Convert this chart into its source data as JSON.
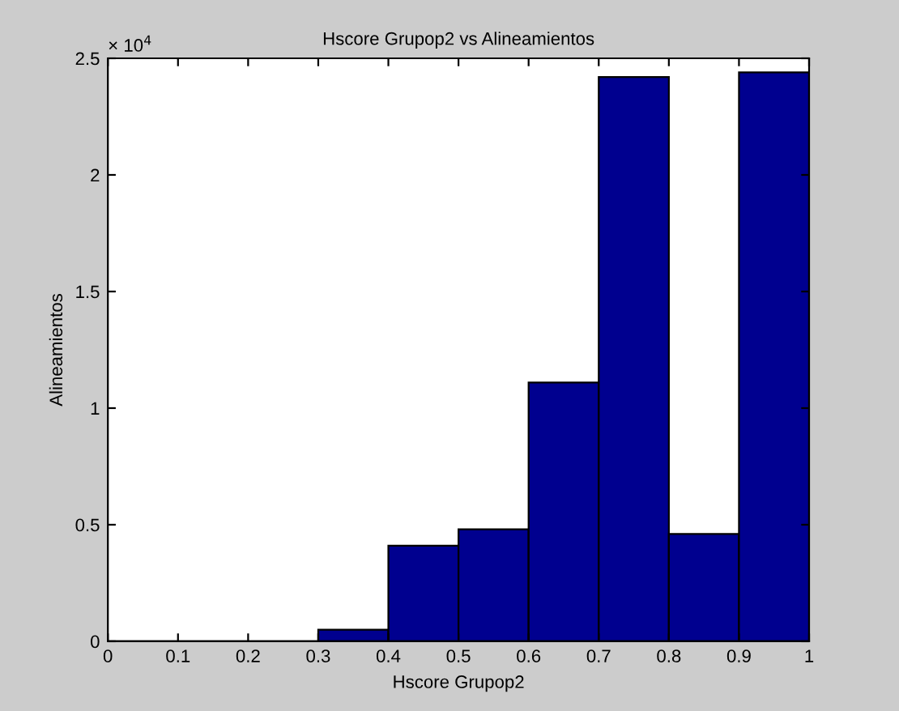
{
  "chart_data": {
    "type": "histogram",
    "title": "Hscore Grupop2 vs Alineamientos",
    "xlabel": "Hscore Grupop2",
    "ylabel": "Alineamientos",
    "bins": [
      0,
      0.1,
      0.2,
      0.3,
      0.4,
      0.5,
      0.6,
      0.7,
      0.8,
      0.9,
      1.0
    ],
    "values": [
      0,
      0,
      0,
      0.05,
      0.41,
      0.48,
      1.11,
      2.42,
      0.46,
      2.44
    ],
    "color": "#00008f",
    "xlim": [
      0,
      1
    ],
    "xticks": [
      0,
      0.1,
      0.2,
      0.3,
      0.4,
      0.5,
      0.6,
      0.7,
      0.8,
      0.9,
      1
    ],
    "ylim": [
      0,
      2.5
    ],
    "yticks": [
      0,
      0.5,
      1,
      1.5,
      2,
      2.5
    ],
    "annotations": [
      "× 10$^{4}$"
    ],
    "grid": false
  }
}
